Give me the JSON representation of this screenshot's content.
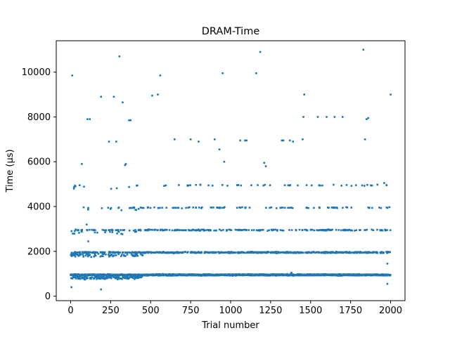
{
  "chart_data": {
    "type": "scatter",
    "title": "DRAM-Time",
    "xlabel": "Trial number",
    "ylabel": "Time (µs)",
    "xlim": [
      -90,
      2090
    ],
    "ylim": [
      -200,
      11400
    ],
    "xticks": [
      0,
      250,
      500,
      750,
      1000,
      1250,
      1500,
      1750,
      2000
    ],
    "xtick_labels": [
      "0",
      "250",
      "500",
      "750",
      "1000",
      "1250",
      "1500",
      "1750",
      "2000"
    ],
    "yticks": [
      0,
      2000,
      4000,
      6000,
      8000,
      10000
    ],
    "ytick_labels": [
      "0",
      "2000",
      "4000",
      "6000",
      "8000",
      "10000"
    ],
    "grid": false,
    "marker_color": "#1f77b4",
    "n_trials": 2000,
    "band_levels": [
      950,
      1950,
      2950,
      3950,
      4950
    ],
    "band_point_counts": [
      2000,
      760,
      260,
      110,
      55
    ],
    "outliers": [
      [
        10,
        9850
      ],
      [
        20,
        4800
      ],
      [
        30,
        4900
      ],
      [
        70,
        5900
      ],
      [
        100,
        3200
      ],
      [
        105,
        7900
      ],
      [
        120,
        7900
      ],
      [
        110,
        2450
      ],
      [
        190,
        300
      ],
      [
        190,
        8900
      ],
      [
        240,
        6900
      ],
      [
        270,
        8900
      ],
      [
        285,
        6900
      ],
      [
        305,
        10700
      ],
      [
        325,
        8650
      ],
      [
        340,
        5850
      ],
      [
        345,
        5900
      ],
      [
        365,
        7850
      ],
      [
        375,
        7850
      ],
      [
        410,
        3850
      ],
      [
        510,
        8950
      ],
      [
        545,
        9000
      ],
      [
        560,
        9850
      ],
      [
        650,
        7000
      ],
      [
        750,
        7000
      ],
      [
        800,
        6900
      ],
      [
        900,
        7000
      ],
      [
        930,
        6550
      ],
      [
        950,
        9950
      ],
      [
        960,
        6000
      ],
      [
        1060,
        6950
      ],
      [
        1090,
        6950
      ],
      [
        1100,
        6950
      ],
      [
        1160,
        9950
      ],
      [
        1185,
        10900
      ],
      [
        1210,
        5950
      ],
      [
        1220,
        5800
      ],
      [
        1320,
        6950
      ],
      [
        1330,
        6950
      ],
      [
        1370,
        6950
      ],
      [
        1390,
        6900
      ],
      [
        1450,
        7000
      ],
      [
        1455,
        8000
      ],
      [
        1460,
        9000
      ],
      [
        1545,
        8000
      ],
      [
        1600,
        8000
      ],
      [
        1650,
        8000
      ],
      [
        1700,
        8000
      ],
      [
        1830,
        11000
      ],
      [
        1840,
        7000
      ],
      [
        1850,
        7900
      ],
      [
        1860,
        7950
      ],
      [
        1960,
        5050
      ],
      [
        2000,
        9000
      ],
      [
        1980,
        550
      ],
      [
        5,
        400
      ],
      [
        1980,
        1450
      ],
      [
        1380,
        1050
      ]
    ]
  }
}
